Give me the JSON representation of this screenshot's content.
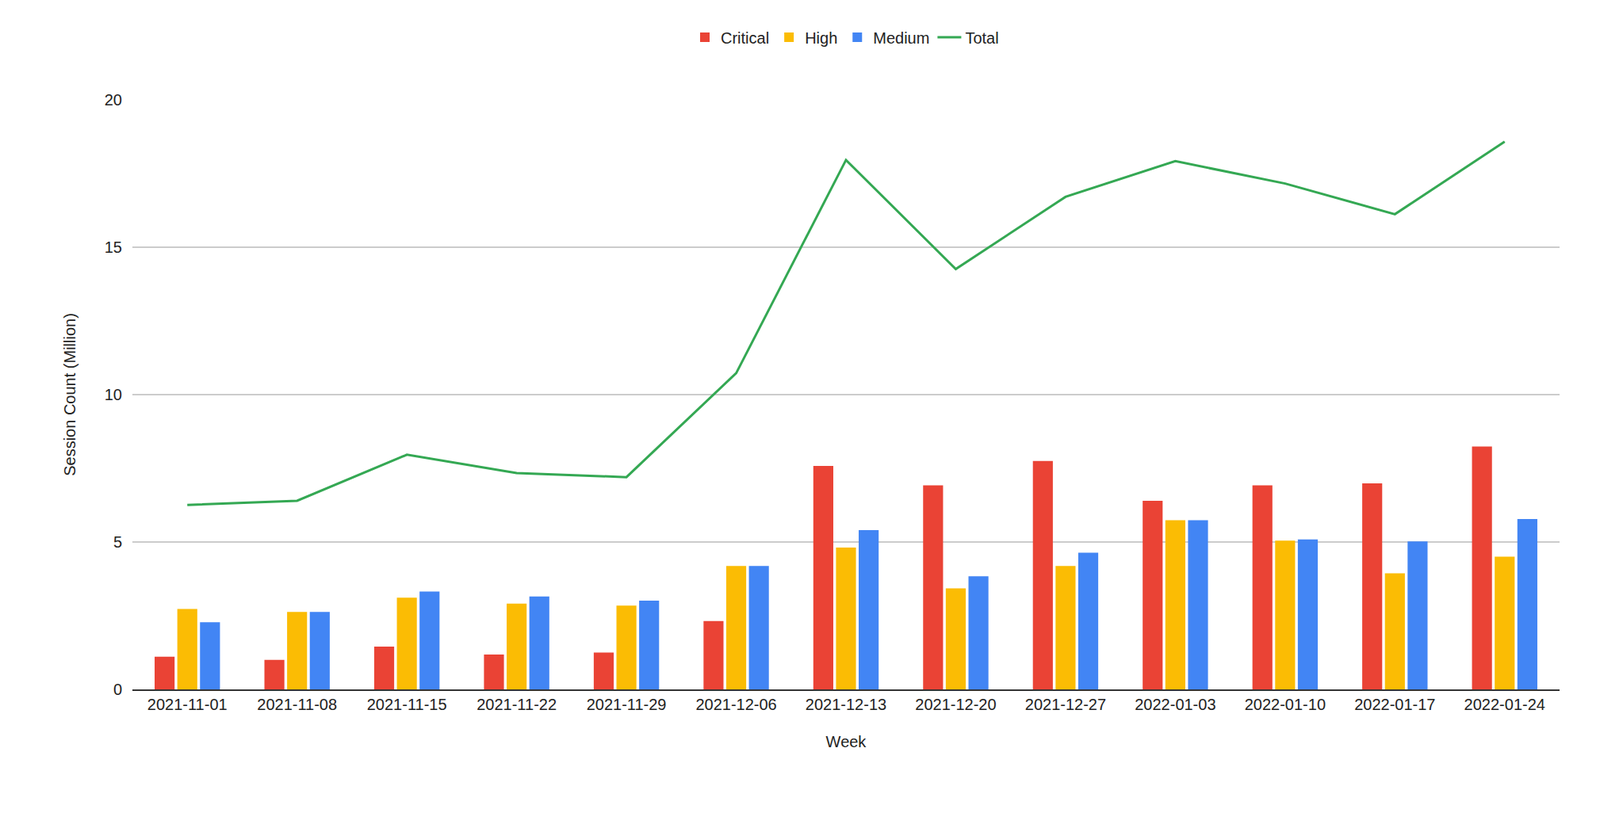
{
  "chart_data": {
    "type": "bar",
    "x_label": "Week",
    "y_label": "Session Count (Million)",
    "categories": [
      "2021-11-01",
      "2021-11-08",
      "2021-11-15",
      "2021-11-22",
      "2021-11-29",
      "2021-12-06",
      "2021-12-13",
      "2021-12-20",
      "2021-12-27",
      "2022-01-03",
      "2022-01-10",
      "2022-01-17",
      "2022-01-24"
    ],
    "series": [
      {
        "name": "Critical",
        "type": "bar",
        "color": "#ea4335",
        "values": [
          1.11,
          1.0,
          1.45,
          1.18,
          1.25,
          2.32,
          7.58,
          6.92,
          7.75,
          6.4,
          6.92,
          6.99,
          8.24
        ]
      },
      {
        "name": "High",
        "type": "bar",
        "color": "#fbbc04",
        "values": [
          2.73,
          2.63,
          3.11,
          2.91,
          2.84,
          4.19,
          4.81,
          3.43,
          4.19,
          5.74,
          5.05,
          3.94,
          4.5
        ]
      },
      {
        "name": "Medium",
        "type": "bar",
        "color": "#4285f4",
        "values": [
          2.28,
          2.63,
          3.32,
          3.15,
          3.01,
          4.19,
          5.4,
          3.84,
          4.64,
          5.74,
          5.09,
          5.02,
          5.78
        ]
      },
      {
        "name": "Total",
        "type": "line",
        "color": "#34a853",
        "values": [
          6.26,
          6.4,
          7.96,
          7.34,
          7.2,
          10.73,
          17.96,
          14.26,
          16.71,
          17.92,
          17.16,
          16.12,
          18.58
        ]
      }
    ],
    "ylim": [
      0,
      20
    ],
    "yticks": [
      0,
      5,
      10,
      15,
      20
    ],
    "grid": true,
    "legend": "top"
  }
}
